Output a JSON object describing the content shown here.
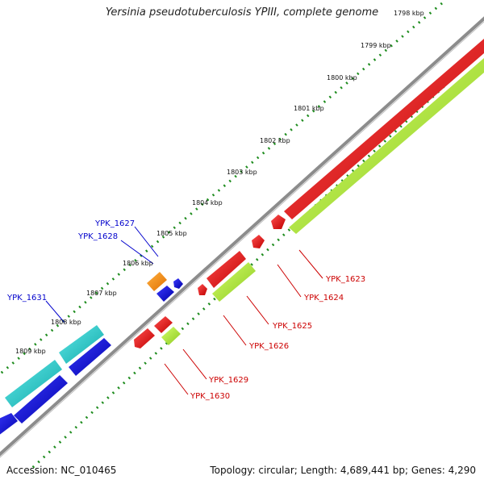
{
  "title": "Yersinia pseudotuberculosis YPIII, complete genome",
  "footer": {
    "accession": "Accession: NC_010465",
    "summary": "Topology: circular; Length: 4,689,441 bp; Genes: 4,290"
  },
  "ruler_labels": [
    "1798 kbp",
    "1799 kbp",
    "1800 kbp",
    "1801 kbp",
    "1802 kbp",
    "1803 kbp",
    "1804 kbp",
    "1805 kbp",
    "1806 kbp",
    "1807 kbp",
    "1808 kbp",
    "1809 kbp"
  ],
  "genes": [
    {
      "label": "YPK_1623",
      "color": "#cc0000"
    },
    {
      "label": "YPK_1624",
      "color": "#cc0000"
    },
    {
      "label": "YPK_1625",
      "color": "#cc0000"
    },
    {
      "label": "YPK_1626",
      "color": "#cc0000"
    },
    {
      "label": "YPK_1627",
      "color": "#0000cc"
    },
    {
      "label": "YPK_1628",
      "color": "#0000cc"
    },
    {
      "label": "YPK_1629",
      "color": "#cc0000"
    },
    {
      "label": "YPK_1630",
      "color": "#cc0000"
    },
    {
      "label": "YPK_1631",
      "color": "#0000cc"
    }
  ],
  "colors": {
    "backbone": "#8c8c8c",
    "ruler_dots": "#1e8c1e",
    "red_cds": "#ff0000",
    "green_cds": "#a6e22e",
    "blue_cds": "#0000ee",
    "cyan_cds": "#20c8c8",
    "orange_cds": "#ff8c00"
  }
}
